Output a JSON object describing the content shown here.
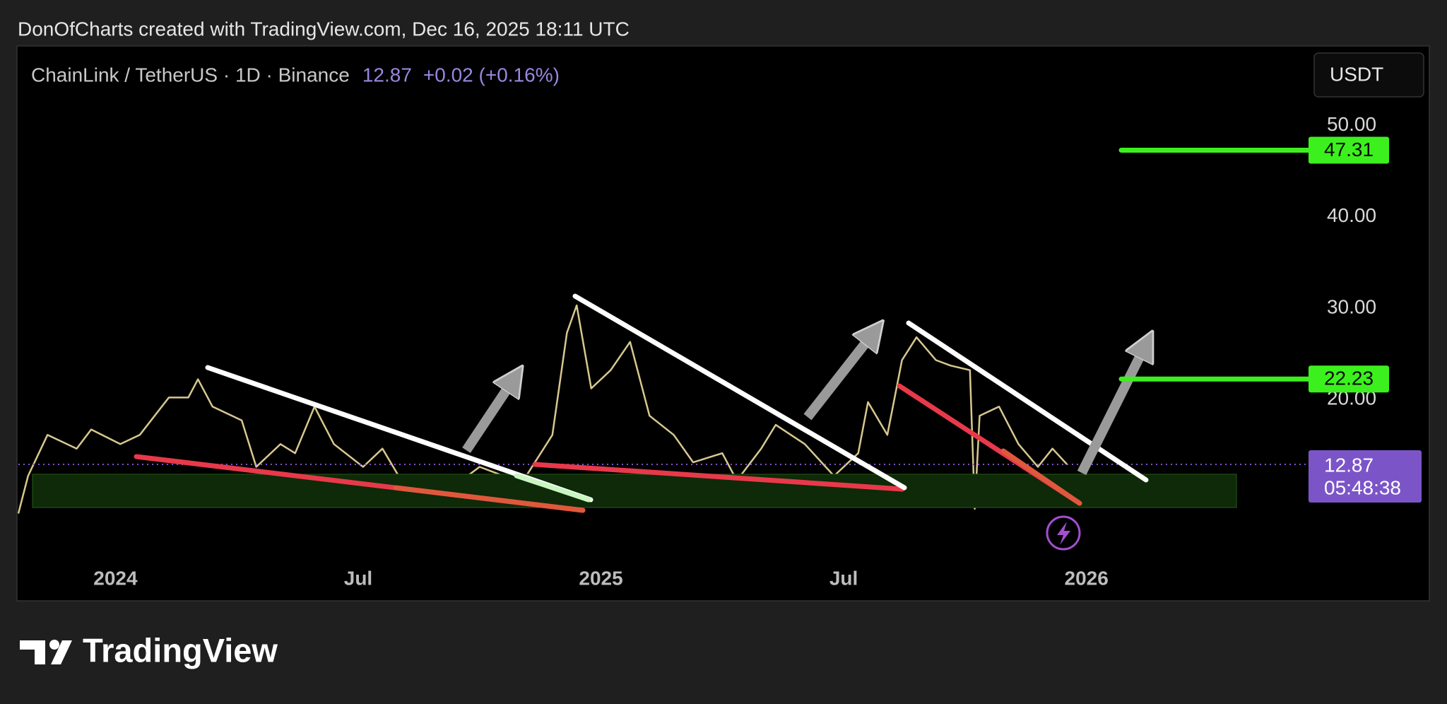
{
  "chart_data": {
    "type": "line",
    "byline": "DonOfCharts created with TradingView.com, Dec 16, 2025 18:11 UTC",
    "title": "ChainLink / TetherUS · 1D · Binance",
    "last_price": 12.87,
    "change": "+0.02 (+0.16%)",
    "currency": "USDT",
    "countdown": "05:48:38",
    "brand": "TradingView",
    "color": "#d8c88e",
    "x": [
      2023.8,
      2023.82,
      2023.86,
      2023.92,
      2023.95,
      2024.01,
      2024.05,
      2024.11,
      2024.15,
      2024.17,
      2024.2,
      2024.26,
      2024.29,
      2024.34,
      2024.37,
      2024.41,
      2024.45,
      2024.51,
      2024.55,
      2024.6,
      2024.66,
      2024.7,
      2024.75,
      2024.8,
      2024.84,
      2024.87,
      2024.9,
      2024.93,
      2024.95,
      2024.98,
      2025.02,
      2025.06,
      2025.1,
      2025.15,
      2025.19,
      2025.25,
      2025.28,
      2025.33,
      2025.36,
      2025.42,
      2025.48,
      2025.53,
      2025.55,
      2025.59,
      2025.62,
      2025.65,
      2025.69,
      2025.72,
      2025.76,
      2025.77,
      2025.78,
      2025.82,
      2025.86,
      2025.9,
      2025.93,
      2025.96
    ],
    "values": [
      7.5,
      11.6,
      16.1,
      14.6,
      16.7,
      15.1,
      16.1,
      20.2,
      20.2,
      22.2,
      19.2,
      17.7,
      12.6,
      15.1,
      14.1,
      19.2,
      15.1,
      12.6,
      14.6,
      10.1,
      11.6,
      10.6,
      12.6,
      11.6,
      11.1,
      13.6,
      16.1,
      27.3,
      30.3,
      21.2,
      23.2,
      26.3,
      18.2,
      16.1,
      13.1,
      14.1,
      11.1,
      14.6,
      17.2,
      15.1,
      11.6,
      14.1,
      19.7,
      16.1,
      24.3,
      26.8,
      24.3,
      23.7,
      23.2,
      8.0,
      18.2,
      19.2,
      15.1,
      12.6,
      14.6,
      12.87
    ],
    "xlim": [
      2023.8,
      2026.44
    ],
    "xticks": [
      {
        "value": 2024,
        "label": "2024"
      },
      {
        "value": 2024.5,
        "label": "Jul"
      },
      {
        "value": 2025,
        "label": "2025"
      },
      {
        "value": 2025.5,
        "label": "Jul"
      },
      {
        "value": 2026,
        "label": "2026"
      }
    ],
    "ylim": [
      -2,
      58.5
    ],
    "yticks": [
      {
        "value": 20,
        "label": "20.00"
      },
      {
        "value": 30,
        "label": "30.00"
      },
      {
        "value": 40,
        "label": "40.00"
      },
      {
        "value": 50,
        "label": "50.00"
      }
    ],
    "levels": [
      {
        "value": 47.31,
        "color": "#3cf01e"
      },
      {
        "value": 22.23,
        "color": "#3cf01e"
      }
    ],
    "price_label_color": "#7b55c8"
  }
}
